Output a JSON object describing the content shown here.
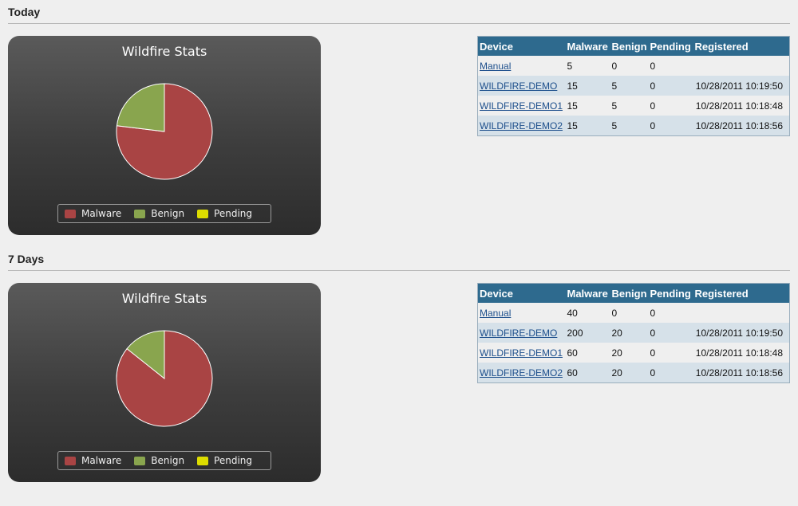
{
  "sections": [
    {
      "title": "Today",
      "chart": {
        "title": "Wildfire Stats",
        "legend": [
          {
            "label": "Malware",
            "color": "#a94444"
          },
          {
            "label": "Benign",
            "color": "#89a54e"
          },
          {
            "label": "Pending",
            "color": "#dddd00"
          }
        ]
      },
      "chart_data": {
        "type": "pie",
        "labels": [
          "Malware",
          "Benign",
          "Pending"
        ],
        "values": [
          50,
          15,
          0
        ],
        "colors": [
          "#a94444",
          "#89a54e",
          "#dddd00"
        ]
      },
      "table": {
        "headers": [
          "Device",
          "Malware",
          "Benign",
          "Pending",
          "Registered"
        ],
        "rows": [
          {
            "device": "Manual",
            "malware": "5",
            "benign": "0",
            "pending": "0",
            "registered": ""
          },
          {
            "device": "WILDFIRE-DEMO",
            "malware": "15",
            "benign": "5",
            "pending": "0",
            "registered": "10/28/2011 10:19:50"
          },
          {
            "device": "WILDFIRE-DEMO1",
            "malware": "15",
            "benign": "5",
            "pending": "0",
            "registered": "10/28/2011 10:18:48"
          },
          {
            "device": "WILDFIRE-DEMO2",
            "malware": "15",
            "benign": "5",
            "pending": "0",
            "registered": "10/28/2011 10:18:56"
          }
        ]
      }
    },
    {
      "title": "7 Days",
      "chart": {
        "title": "Wildfire Stats",
        "legend": [
          {
            "label": "Malware",
            "color": "#a94444"
          },
          {
            "label": "Benign",
            "color": "#89a54e"
          },
          {
            "label": "Pending",
            "color": "#dddd00"
          }
        ]
      },
      "chart_data": {
        "type": "pie",
        "labels": [
          "Malware",
          "Benign",
          "Pending"
        ],
        "values": [
          360,
          60,
          0
        ],
        "colors": [
          "#a94444",
          "#89a54e",
          "#dddd00"
        ]
      },
      "table": {
        "headers": [
          "Device",
          "Malware",
          "Benign",
          "Pending",
          "Registered"
        ],
        "rows": [
          {
            "device": "Manual",
            "malware": "40",
            "benign": "0",
            "pending": "0",
            "registered": ""
          },
          {
            "device": "WILDFIRE-DEMO",
            "malware": "200",
            "benign": "20",
            "pending": "0",
            "registered": "10/28/2011 10:19:50"
          },
          {
            "device": "WILDFIRE-DEMO1",
            "malware": "60",
            "benign": "20",
            "pending": "0",
            "registered": "10/28/2011 10:18:48"
          },
          {
            "device": "WILDFIRE-DEMO2",
            "malware": "60",
            "benign": "20",
            "pending": "0",
            "registered": "10/28/2011 10:18:56"
          }
        ]
      }
    }
  ]
}
